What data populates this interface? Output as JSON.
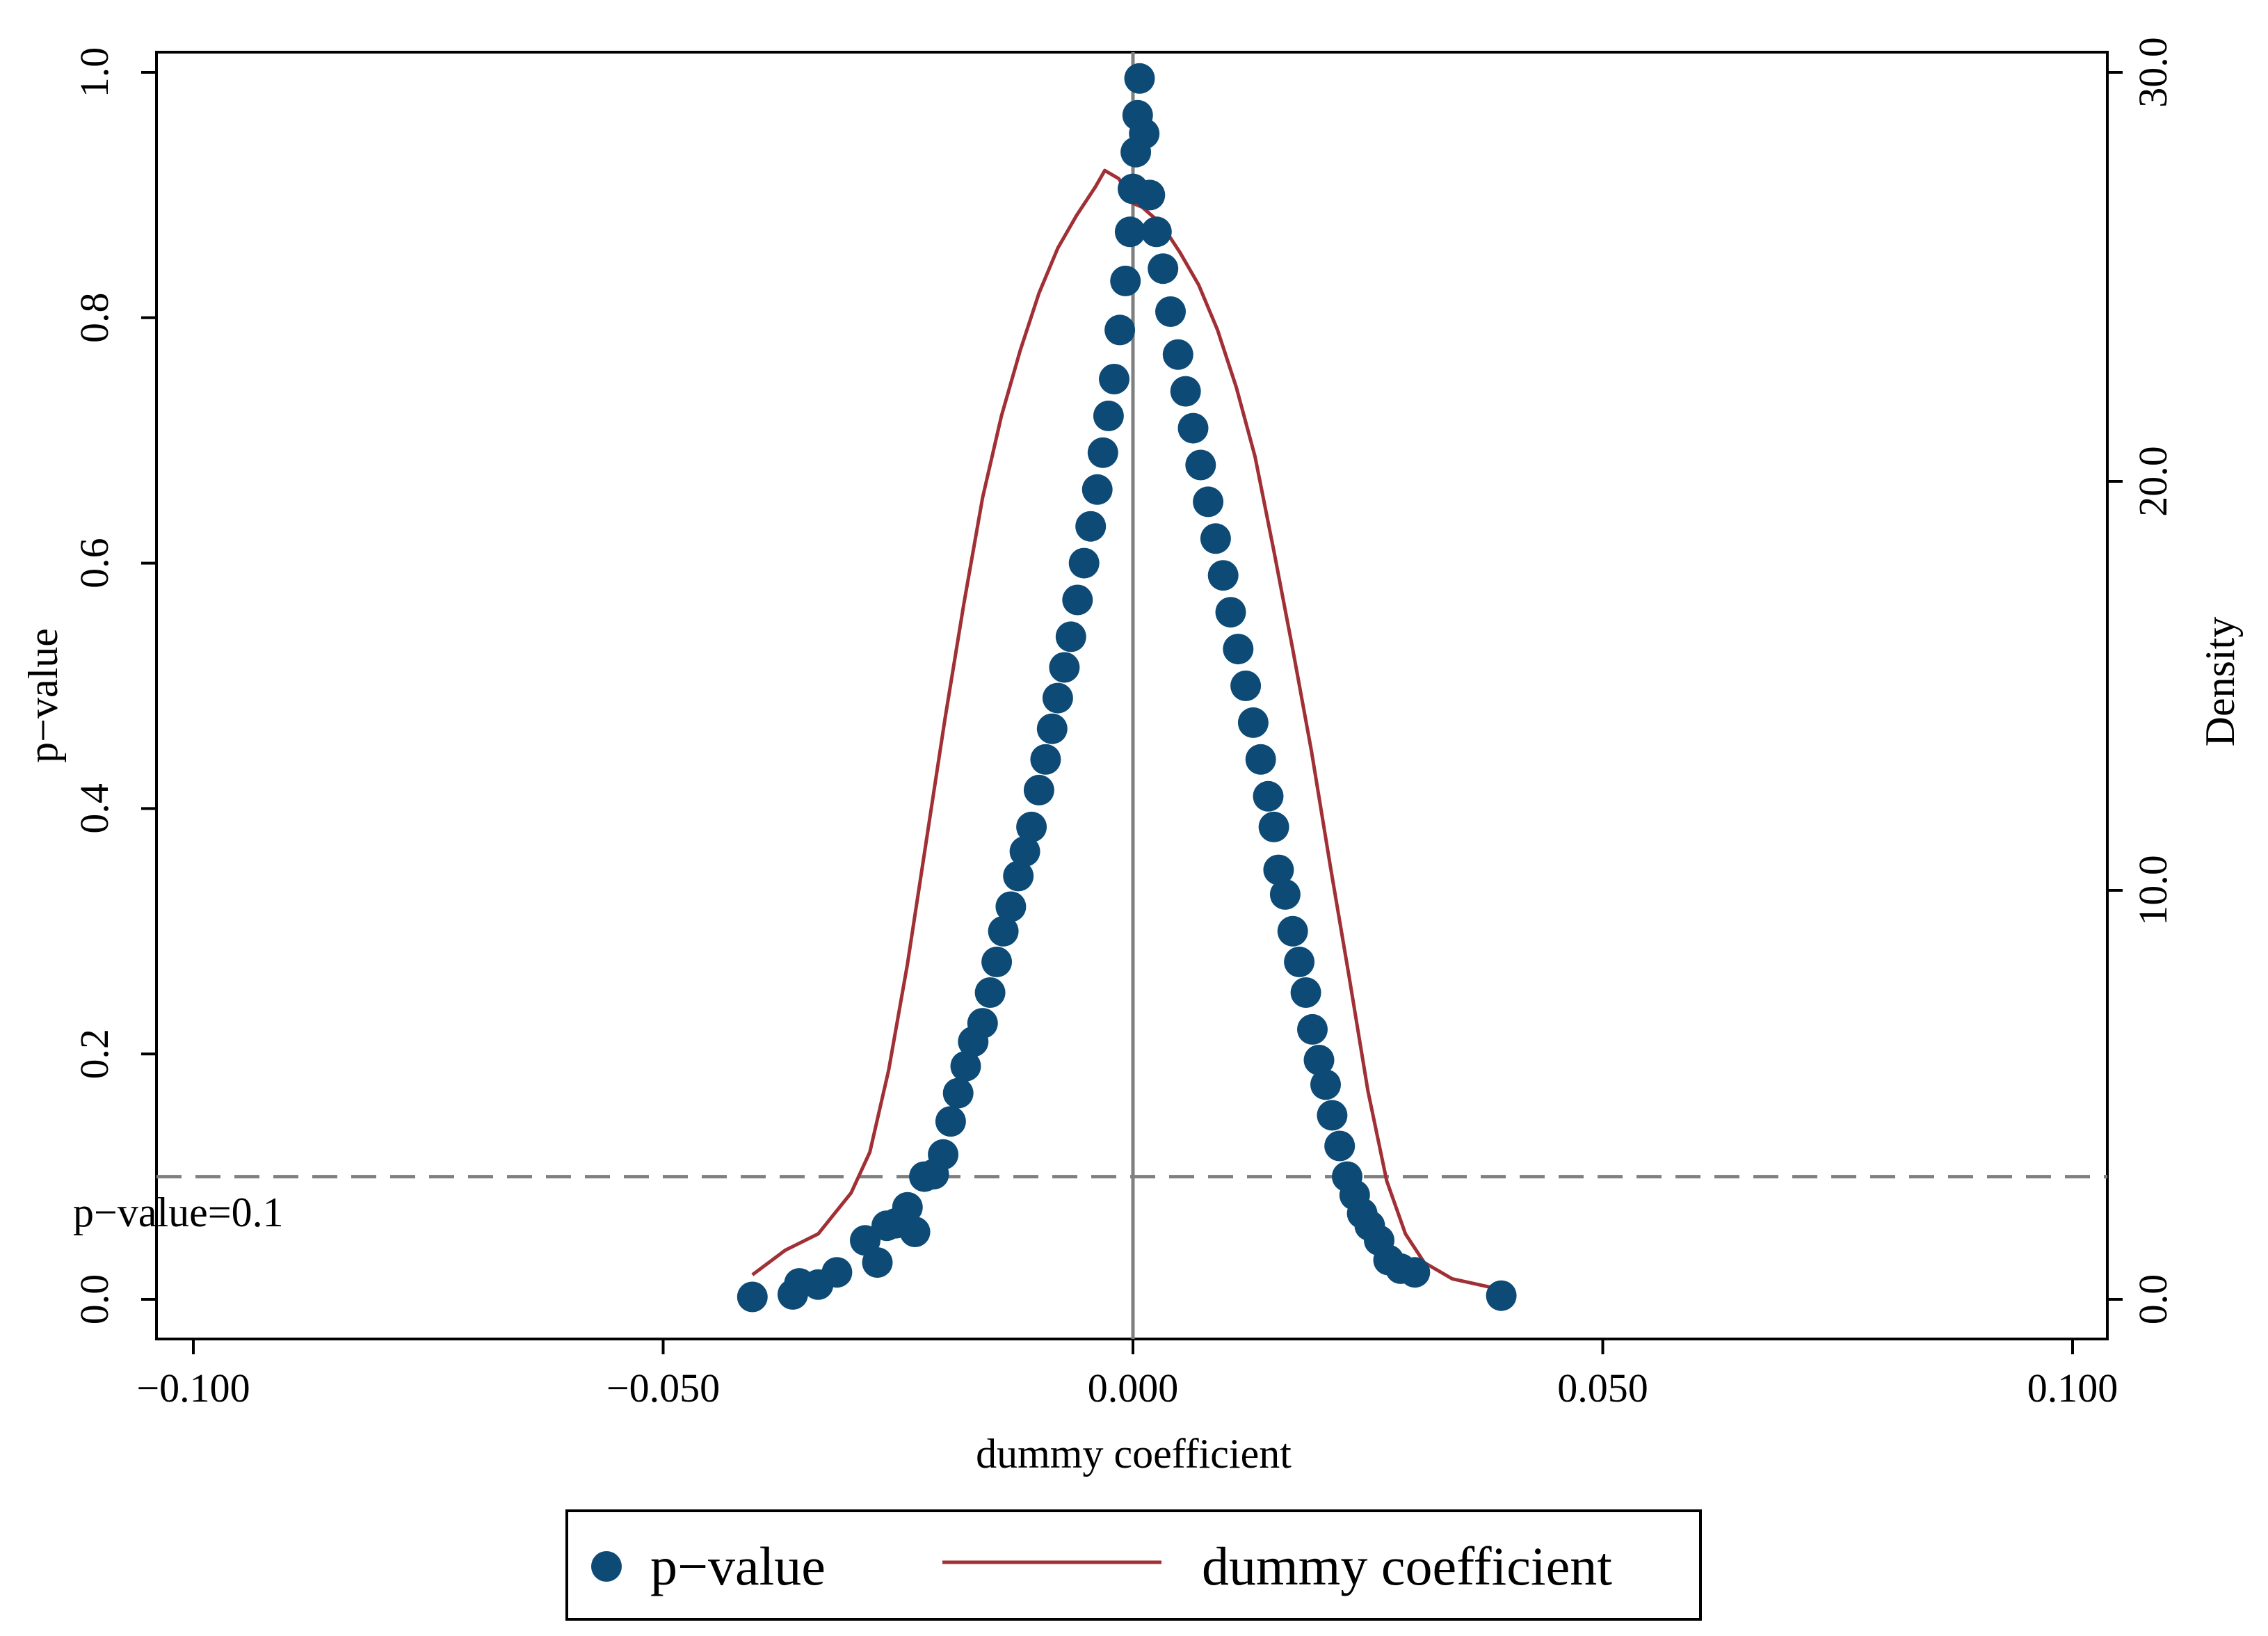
{
  "chart_data": {
    "type": "scatter",
    "xlabel": "dummy coefficient",
    "ylabel": "p−value",
    "y2label": "Density",
    "xlim": [
      -0.1,
      0.1
    ],
    "ylim": [
      0,
      1
    ],
    "y2lim": [
      0,
      30
    ],
    "x_ticks": [
      "−0.100",
      "−0.050",
      "0.000",
      "0.050",
      "0.100"
    ],
    "x_tick_values": [
      -0.1,
      -0.05,
      0,
      0.05,
      0.1
    ],
    "y_ticks": [
      "0.0",
      "0.2",
      "0.4",
      "0.6",
      "0.8",
      "1.0"
    ],
    "y_tick_values": [
      0,
      0.2,
      0.4,
      0.6,
      0.8,
      1.0
    ],
    "y2_ticks": [
      "0.0",
      "10.0",
      "20.0",
      "30.0"
    ],
    "y2_tick_values": [
      0,
      10,
      20,
      30
    ],
    "reference_lines": {
      "vertical_x": 0,
      "horizontal_y": 0.1,
      "horizontal_label": "p−value=0.1"
    },
    "grid": false,
    "legend_position": "bottom",
    "series": [
      {
        "name": "p−value",
        "kind": "scatter",
        "color": "#0d4a75",
        "points": [
          [
            -0.0405,
            0.002
          ],
          [
            -0.0362,
            0.004
          ],
          [
            -0.0355,
            0.013
          ],
          [
            -0.0335,
            0.012
          ],
          [
            -0.0315,
            0.022
          ],
          [
            -0.0285,
            0.048
          ],
          [
            -0.0272,
            0.03
          ],
          [
            -0.0262,
            0.06
          ],
          [
            -0.0252,
            0.062
          ],
          [
            -0.024,
            0.075
          ],
          [
            -0.0232,
            0.055
          ],
          [
            -0.0222,
            0.1
          ],
          [
            -0.0212,
            0.102
          ],
          [
            -0.0202,
            0.118
          ],
          [
            -0.0194,
            0.145
          ],
          [
            -0.0186,
            0.168
          ],
          [
            -0.0178,
            0.19
          ],
          [
            -0.017,
            0.21
          ],
          [
            -0.016,
            0.225
          ],
          [
            -0.0152,
            0.25
          ],
          [
            -0.0145,
            0.275
          ],
          [
            -0.0138,
            0.3
          ],
          [
            -0.013,
            0.32
          ],
          [
            -0.0122,
            0.345
          ],
          [
            -0.0115,
            0.365
          ],
          [
            -0.0108,
            0.385
          ],
          [
            -0.01,
            0.415
          ],
          [
            -0.0093,
            0.44
          ],
          [
            -0.0086,
            0.465
          ],
          [
            -0.008,
            0.49
          ],
          [
            -0.0073,
            0.515
          ],
          [
            -0.0066,
            0.54
          ],
          [
            -0.0059,
            0.57
          ],
          [
            -0.0052,
            0.6
          ],
          [
            -0.0045,
            0.63
          ],
          [
            -0.0038,
            0.66
          ],
          [
            -0.0032,
            0.69
          ],
          [
            -0.0026,
            0.72
          ],
          [
            -0.002,
            0.75
          ],
          [
            -0.0014,
            0.79
          ],
          [
            -0.0008,
            0.83
          ],
          [
            -0.0003,
            0.87
          ],
          [
            0.0,
            0.905
          ],
          [
            0.0003,
            0.935
          ],
          [
            0.0005,
            0.965
          ],
          [
            0.0007,
            0.995
          ],
          [
            0.0012,
            0.95
          ],
          [
            0.0018,
            0.9
          ],
          [
            0.0025,
            0.87
          ],
          [
            0.0032,
            0.84
          ],
          [
            0.004,
            0.805
          ],
          [
            0.0048,
            0.77
          ],
          [
            0.0056,
            0.74
          ],
          [
            0.0064,
            0.71
          ],
          [
            0.0072,
            0.68
          ],
          [
            0.008,
            0.65
          ],
          [
            0.0088,
            0.62
          ],
          [
            0.0096,
            0.59
          ],
          [
            0.0104,
            0.56
          ],
          [
            0.0112,
            0.53
          ],
          [
            0.012,
            0.5
          ],
          [
            0.0128,
            0.47
          ],
          [
            0.0136,
            0.44
          ],
          [
            0.0144,
            0.41
          ],
          [
            0.015,
            0.385
          ],
          [
            0.0155,
            0.35
          ],
          [
            0.0162,
            0.33
          ],
          [
            0.017,
            0.3
          ],
          [
            0.0177,
            0.275
          ],
          [
            0.0184,
            0.25
          ],
          [
            0.0191,
            0.22
          ],
          [
            0.0198,
            0.195
          ],
          [
            0.0205,
            0.175
          ],
          [
            0.0212,
            0.15
          ],
          [
            0.022,
            0.125
          ],
          [
            0.0228,
            0.1
          ],
          [
            0.0236,
            0.085
          ],
          [
            0.0244,
            0.07
          ],
          [
            0.0252,
            0.06
          ],
          [
            0.0262,
            0.048
          ],
          [
            0.0272,
            0.032
          ],
          [
            0.0285,
            0.025
          ],
          [
            0.03,
            0.022
          ],
          [
            0.0392,
            0.003
          ]
        ]
      },
      {
        "name": "dummy coefficient",
        "kind": "line",
        "axis": "right",
        "color": "#a03035",
        "points": [
          [
            -0.0405,
            0.6
          ],
          [
            -0.037,
            1.2
          ],
          [
            -0.0335,
            1.6
          ],
          [
            -0.03,
            2.6
          ],
          [
            -0.028,
            3.6
          ],
          [
            -0.026,
            5.6
          ],
          [
            -0.024,
            8.2
          ],
          [
            -0.022,
            11.2
          ],
          [
            -0.02,
            14.2
          ],
          [
            -0.018,
            17.0
          ],
          [
            -0.016,
            19.6
          ],
          [
            -0.014,
            21.6
          ],
          [
            -0.012,
            23.2
          ],
          [
            -0.01,
            24.6
          ],
          [
            -0.008,
            25.7
          ],
          [
            -0.006,
            26.5
          ],
          [
            -0.004,
            27.2
          ],
          [
            -0.003,
            27.6
          ],
          [
            -0.0015,
            27.4
          ],
          [
            0.0,
            26.8
          ],
          [
            0.001,
            26.7
          ],
          [
            0.003,
            26.3
          ],
          [
            0.005,
            25.6
          ],
          [
            0.007,
            24.8
          ],
          [
            0.009,
            23.7
          ],
          [
            0.011,
            22.3
          ],
          [
            0.013,
            20.6
          ],
          [
            0.015,
            18.3
          ],
          [
            0.017,
            15.9
          ],
          [
            0.019,
            13.4
          ],
          [
            0.021,
            10.6
          ],
          [
            0.023,
            7.9
          ],
          [
            0.025,
            5.1
          ],
          [
            0.027,
            2.9
          ],
          [
            0.029,
            1.6
          ],
          [
            0.031,
            0.9
          ],
          [
            0.034,
            0.5
          ],
          [
            0.038,
            0.3
          ]
        ]
      }
    ]
  },
  "legend": {
    "items": [
      {
        "label": "p−value",
        "marker": "dot",
        "color": "#0d4a75"
      },
      {
        "label": "dummy coefficient",
        "marker": "line",
        "color": "#a03035"
      }
    ]
  }
}
